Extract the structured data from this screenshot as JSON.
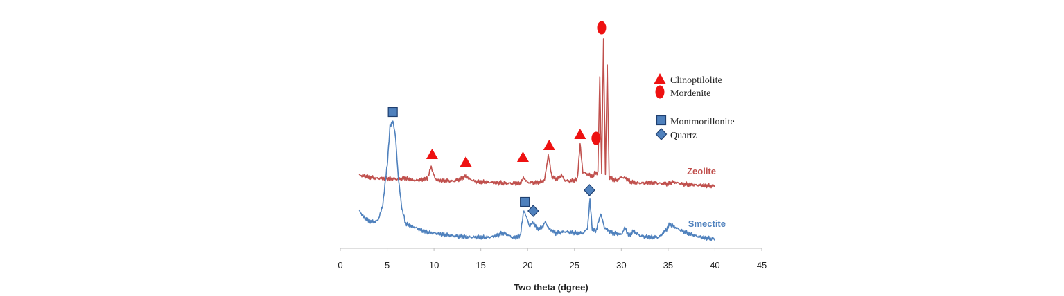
{
  "chart_data": {
    "type": "line",
    "title": "",
    "xlabel": "Two theta (dgree)",
    "ylabel": "",
    "xlim": [
      0,
      45
    ],
    "x_ticks": [
      0,
      5,
      10,
      15,
      20,
      25,
      30,
      35,
      40,
      45
    ],
    "grid": false,
    "colors": {
      "zeolite": "#c0504d",
      "smectite": "#4f81bd",
      "triangle": "#ee1111",
      "circle": "#ee1111",
      "square_fill": "#4f81bd",
      "square_stroke": "#1f3f6f",
      "diamond_fill": "#4f81bd",
      "diamond_stroke": "#1f3f6f"
    },
    "series": [
      {
        "name": "Zeolite",
        "label": "Zeolite",
        "color": "#c0504d",
        "x": [
          2,
          3,
          4,
          5,
          6,
          7,
          8,
          9,
          9.3,
          9.7,
          10.1,
          10.5,
          11,
          12,
          13,
          13.4,
          13.8,
          14.5,
          15.5,
          16.5,
          17.5,
          18.5,
          19.2,
          19.6,
          20,
          21,
          21.8,
          22.2,
          22.6,
          23.2,
          23.6,
          24,
          24.5,
          25,
          25.3,
          25.6,
          25.9,
          26.3,
          26.6,
          27.0,
          27.2,
          27.5,
          27.7,
          27.9,
          28.1,
          28.3,
          28.5,
          28.7,
          29.0,
          29.5,
          30,
          30.5,
          31,
          32,
          33,
          34,
          35,
          35.5,
          36.5,
          37.5,
          38.5,
          39.5,
          40
        ],
        "y": [
          18,
          15,
          13,
          13,
          12,
          13,
          10,
          12,
          13,
          30,
          13,
          10,
          10,
          9,
          13,
          17,
          12,
          8,
          8,
          7,
          6,
          6,
          6,
          14,
          7,
          7,
          10,
          47,
          15,
          12,
          18,
          10,
          9,
          10,
          12,
          62,
          22,
          20,
          18,
          16,
          22,
          20,
          160,
          20,
          215,
          18,
          175,
          15,
          12,
          10,
          15,
          13,
          8,
          6,
          7,
          6,
          5,
          8,
          5,
          4,
          3,
          2,
          2
        ]
      },
      {
        "name": "Smectite",
        "label": "Smectite",
        "color": "#4f81bd",
        "x": [
          2,
          2.5,
          3,
          3.5,
          4,
          4.5,
          5,
          5.3,
          5.6,
          5.9,
          6.2,
          6.6,
          7,
          8,
          9,
          10,
          12,
          14,
          16,
          17,
          17.3,
          17.8,
          18.5,
          19.2,
          19.6,
          19.8,
          20.2,
          20.6,
          21.0,
          21.5,
          21.9,
          22.3,
          23,
          24,
          25,
          26,
          26.4,
          26.65,
          26.9,
          27.3,
          27.8,
          28.2,
          29,
          30,
          30.4,
          30.8,
          31.3,
          32,
          33,
          34,
          34.7,
          35.2,
          35.8,
          36.5,
          37.5,
          38.5,
          39.5,
          40
        ],
        "y": [
          45,
          35,
          30,
          28,
          30,
          50,
          110,
          165,
          175,
          150,
          90,
          45,
          25,
          20,
          14,
          12,
          8,
          6,
          6,
          10,
          12,
          10,
          5,
          8,
          45,
          38,
          22,
          28,
          18,
          20,
          28,
          18,
          12,
          14,
          12,
          12,
          20,
          60,
          18,
          15,
          40,
          20,
          12,
          10,
          20,
          8,
          15,
          8,
          6,
          6,
          15,
          25,
          20,
          15,
          10,
          6,
          4,
          3
        ]
      }
    ],
    "markers": [
      {
        "shape": "triangle",
        "x": 9.8,
        "series": "Zeolite",
        "offset": 18
      },
      {
        "shape": "triangle",
        "x": 13.4,
        "series": "Zeolite",
        "offset": 20
      },
      {
        "shape": "triangle",
        "x": 19.5,
        "series": "Zeolite",
        "offset": 30
      },
      {
        "shape": "triangle",
        "x": 22.3,
        "series": "Zeolite",
        "offset": 14
      },
      {
        "shape": "triangle",
        "x": 25.6,
        "series": "Zeolite",
        "offset": 15
      },
      {
        "shape": "circle",
        "x": 27.3,
        "series": "Zeolite",
        "offset": 16
      },
      {
        "shape": "circle",
        "x": 27.9,
        "series": "Zeolite",
        "offset": 16
      },
      {
        "shape": "square",
        "x": 5.6,
        "series": "Smectite",
        "offset": 12
      },
      {
        "shape": "square",
        "x": 19.7,
        "series": "Smectite",
        "offset": 12
      },
      {
        "shape": "diamond",
        "x": 20.6,
        "series": "Smectite",
        "offset": 16
      },
      {
        "shape": "diamond",
        "x": 26.6,
        "series": "Smectite",
        "offset": 14
      }
    ],
    "legend": [
      {
        "shape": "triangle",
        "label": "Clinoptilolite"
      },
      {
        "shape": "circle",
        "label": "Mordenite"
      },
      {
        "shape": "square",
        "label": "Montmorillonite"
      },
      {
        "shape": "diamond",
        "label": "Quartz"
      }
    ]
  }
}
